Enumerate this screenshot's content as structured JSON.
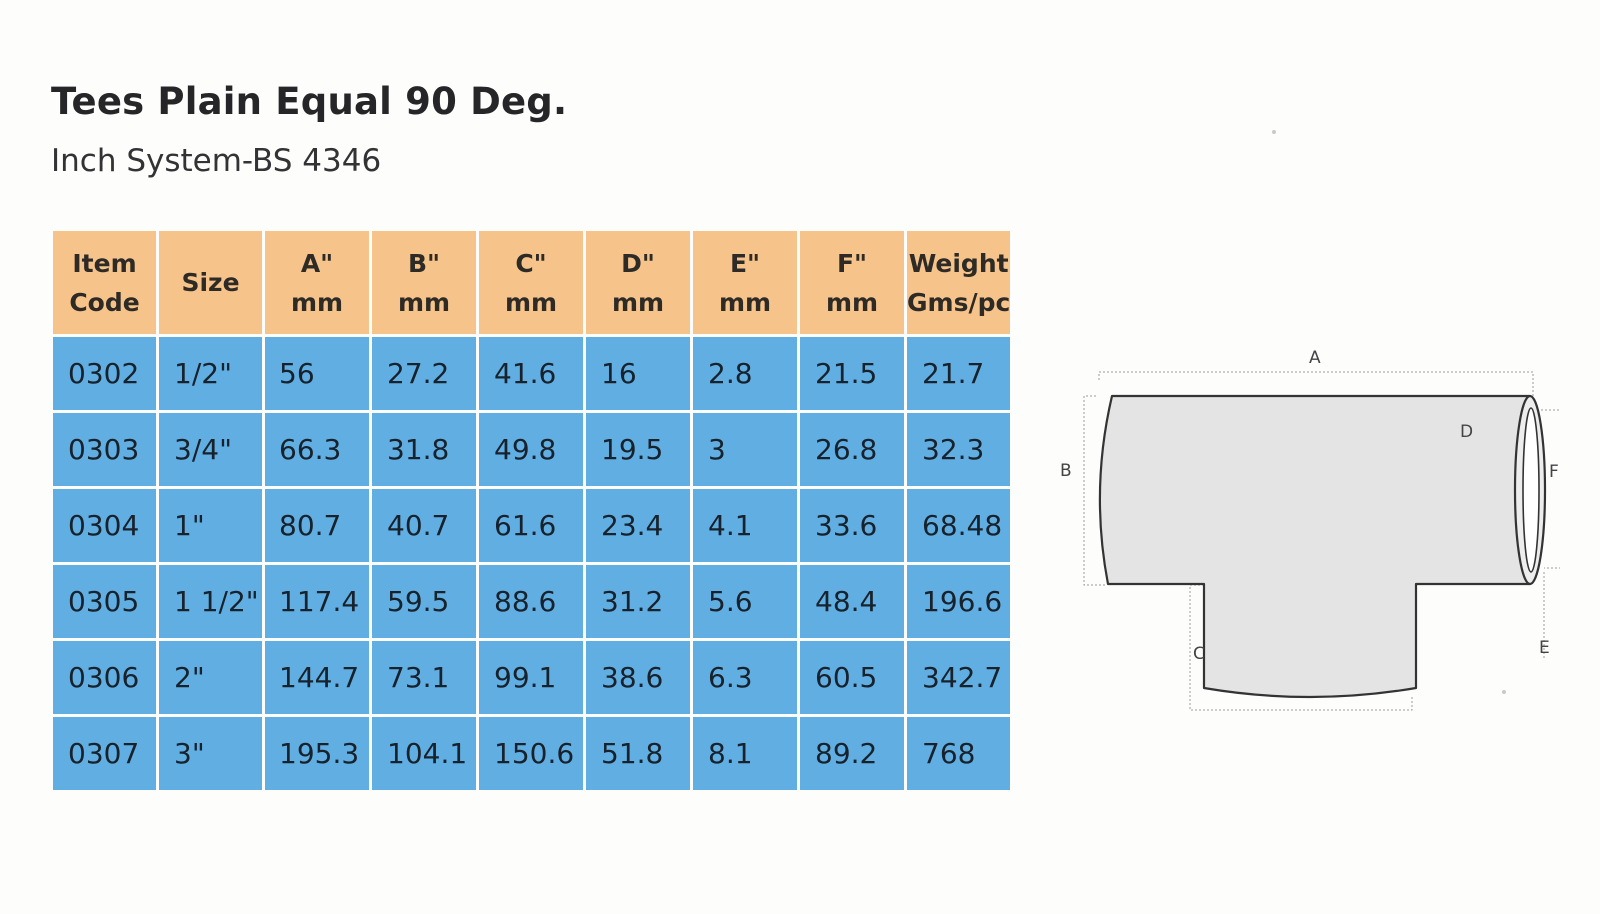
{
  "title": "Tees Plain Equal 90 Deg.",
  "subtitle": "Inch System-BS 4346",
  "table": {
    "headers": [
      [
        "Item",
        "Code"
      ],
      [
        "Size"
      ],
      [
        "A\"",
        "mm"
      ],
      [
        "B\"",
        "mm"
      ],
      [
        "C\"",
        "mm"
      ],
      [
        "D\"",
        "mm"
      ],
      [
        "E\"",
        "mm"
      ],
      [
        "F\"",
        "mm"
      ],
      [
        "Weight",
        "Gms/pc"
      ]
    ],
    "rows": [
      [
        "0302",
        "1/2\"",
        "56",
        "27.2",
        "41.6",
        "16",
        "2.8",
        "21.5",
        "21.7"
      ],
      [
        "0303",
        "3/4\"",
        "66.3",
        "31.8",
        "49.8",
        "19.5",
        "3",
        "26.8",
        "32.3"
      ],
      [
        "0304",
        "1\"",
        "80.7",
        "40.7",
        "61.6",
        "23.4",
        "4.1",
        "33.6",
        "68.48"
      ],
      [
        "0305",
        "1 1/2\"",
        "117.4",
        "59.5",
        "88.6",
        "31.2",
        "5.6",
        "48.4",
        "196.6"
      ],
      [
        "0306",
        "2\"",
        "144.7",
        "73.1",
        "99.1",
        "38.6",
        "6.3",
        "60.5",
        "342.7"
      ],
      [
        "0307",
        "3\"",
        "195.3",
        "104.1",
        "150.6",
        "51.8",
        "8.1",
        "89.2",
        "768"
      ]
    ]
  },
  "diagram": {
    "labels": {
      "a": "A",
      "b": "B",
      "c": "C",
      "d": "D",
      "e": "E",
      "f": "F"
    },
    "colors": {
      "fill": "#e4e4e4",
      "stroke": "#333333",
      "dim": "#9a9a9a"
    }
  },
  "colors": {
    "header_bg": "#f6c48a",
    "cell_bg": "#61aee2"
  }
}
